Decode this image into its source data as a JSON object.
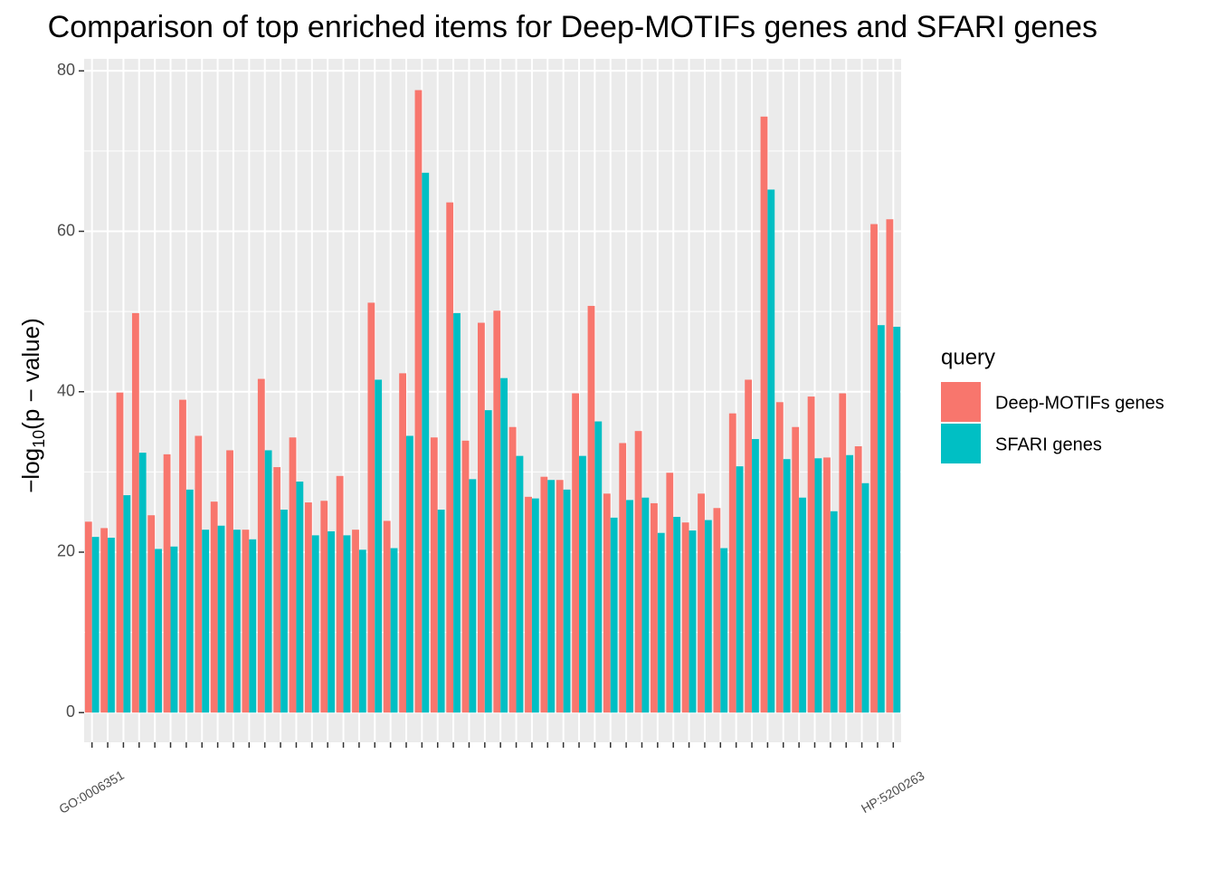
{
  "chart_data": {
    "type": "bar",
    "title": "Comparison of top enriched items for Deep-MOTIFs genes and SFARI genes",
    "y_label": [
      "−log",
      "10",
      "(p − value)"
    ],
    "categories": [
      "GO:0006351",
      null,
      null,
      null,
      null,
      null,
      null,
      null,
      null,
      null,
      null,
      null,
      null,
      null,
      null,
      null,
      null,
      null,
      null,
      null,
      null,
      null,
      null,
      null,
      null,
      null,
      null,
      null,
      null,
      null,
      null,
      null,
      null,
      null,
      null,
      null,
      null,
      null,
      null,
      null,
      null,
      null,
      null,
      null,
      null,
      null,
      null,
      null,
      null,
      null,
      null,
      "HP:5200263"
    ],
    "series": [
      {
        "name": "Deep-MOTIFs genes",
        "color": "#F8766D",
        "values": [
          23.8,
          23.0,
          39.9,
          49.8,
          24.6,
          32.2,
          39.0,
          34.5,
          26.3,
          32.7,
          22.8,
          41.6,
          30.6,
          34.3,
          26.2,
          26.4,
          29.5,
          22.8,
          51.1,
          23.9,
          42.3,
          77.6,
          34.3,
          63.6,
          33.9,
          48.6,
          50.1,
          35.6,
          26.9,
          29.4,
          29.0,
          39.8,
          50.7,
          27.3,
          33.6,
          35.1,
          26.1,
          29.9,
          23.7,
          27.3,
          25.5,
          37.3,
          41.5,
          74.3,
          38.7,
          35.6,
          39.4,
          31.8,
          39.8,
          33.2,
          60.9,
          61.5
        ]
      },
      {
        "name": "SFARI genes",
        "color": "#00BFC4",
        "values": [
          21.9,
          21.8,
          27.1,
          32.4,
          20.4,
          20.7,
          27.8,
          22.8,
          23.3,
          22.8,
          21.6,
          32.7,
          25.3,
          28.8,
          22.1,
          22.6,
          22.1,
          20.3,
          41.5,
          20.5,
          34.5,
          67.3,
          25.3,
          49.8,
          29.1,
          37.7,
          41.7,
          32.0,
          26.7,
          29.0,
          27.8,
          32.0,
          36.3,
          24.3,
          26.5,
          26.8,
          22.4,
          24.4,
          22.7,
          24.0,
          20.5,
          30.7,
          34.1,
          65.2,
          31.6,
          26.8,
          31.7,
          25.1,
          32.1,
          28.6,
          48.3,
          48.1
        ]
      }
    ],
    "legend_title": "query",
    "ylim": [
      -3.7,
      81.5
    ],
    "yticks": [
      0,
      20,
      40,
      60,
      80
    ],
    "y_minor_ticks": [
      10,
      30,
      50,
      70
    ],
    "grid": true
  }
}
